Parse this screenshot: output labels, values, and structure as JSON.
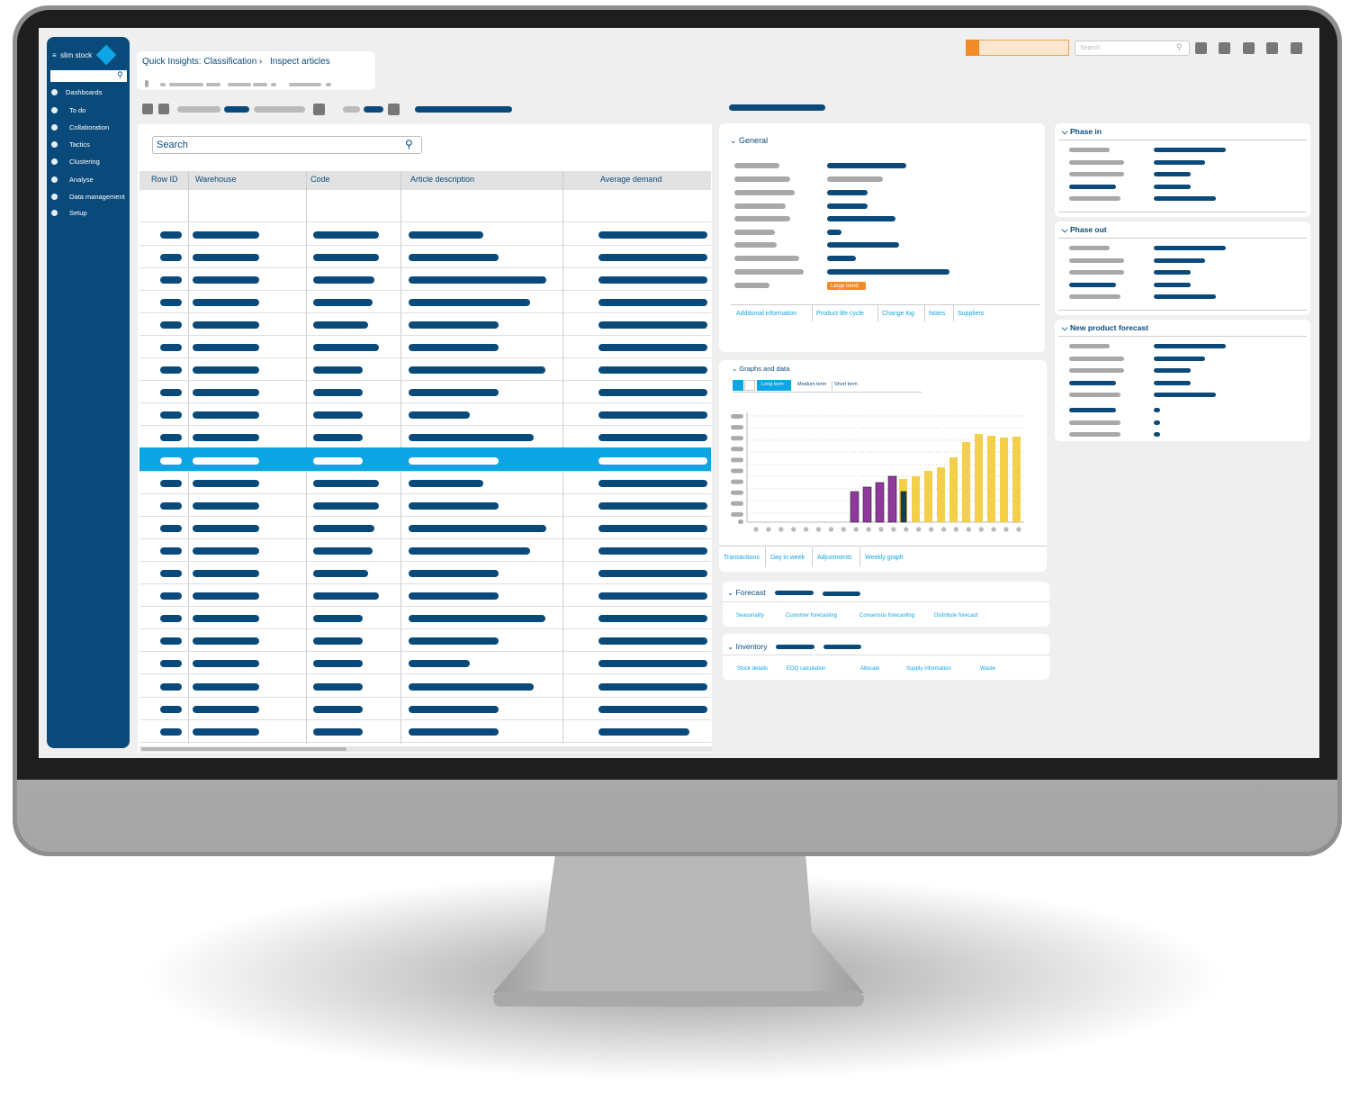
{
  "sidebar": {
    "logo": "slim stock",
    "menu": [
      "Dashboards",
      "To do",
      "Collaboration",
      "Tactics",
      "Clustering",
      "Analyse",
      "Data management",
      "Setup"
    ]
  },
  "topbar": {
    "search_placeholder": "Search"
  },
  "breadcrumb": [
    "Quick Insights: Classification",
    "Inspect articles"
  ],
  "table": {
    "search_placeholder": "Search",
    "columns": [
      "Row ID",
      "Warehouse",
      "Code",
      "Article description",
      "Average demand"
    ]
  },
  "general": {
    "title": "General",
    "badge": "Large trend",
    "tabs": [
      "Additional information",
      "Product life cycle",
      "Change log",
      "Notes",
      "Suppliers"
    ]
  },
  "graphs": {
    "title": "Graphs and data",
    "term_tabs": [
      "Long term",
      "Medium term",
      "Short term"
    ],
    "tabs": [
      "Transactions",
      "Day in week",
      "Adjustments",
      "Weekly graph"
    ]
  },
  "forecast": {
    "title": "Forecast",
    "links": [
      "Seasonality",
      "Customer forecasting",
      "Consensus forecasting",
      "Distribute forecast"
    ]
  },
  "inventory": {
    "title": "Inventory",
    "links": [
      "Stock details",
      "EOQ calculation",
      "Allocate",
      "Supply information",
      "Waste"
    ]
  },
  "side_panels": [
    "Phase in",
    "Phase out",
    "New product forecast"
  ]
}
